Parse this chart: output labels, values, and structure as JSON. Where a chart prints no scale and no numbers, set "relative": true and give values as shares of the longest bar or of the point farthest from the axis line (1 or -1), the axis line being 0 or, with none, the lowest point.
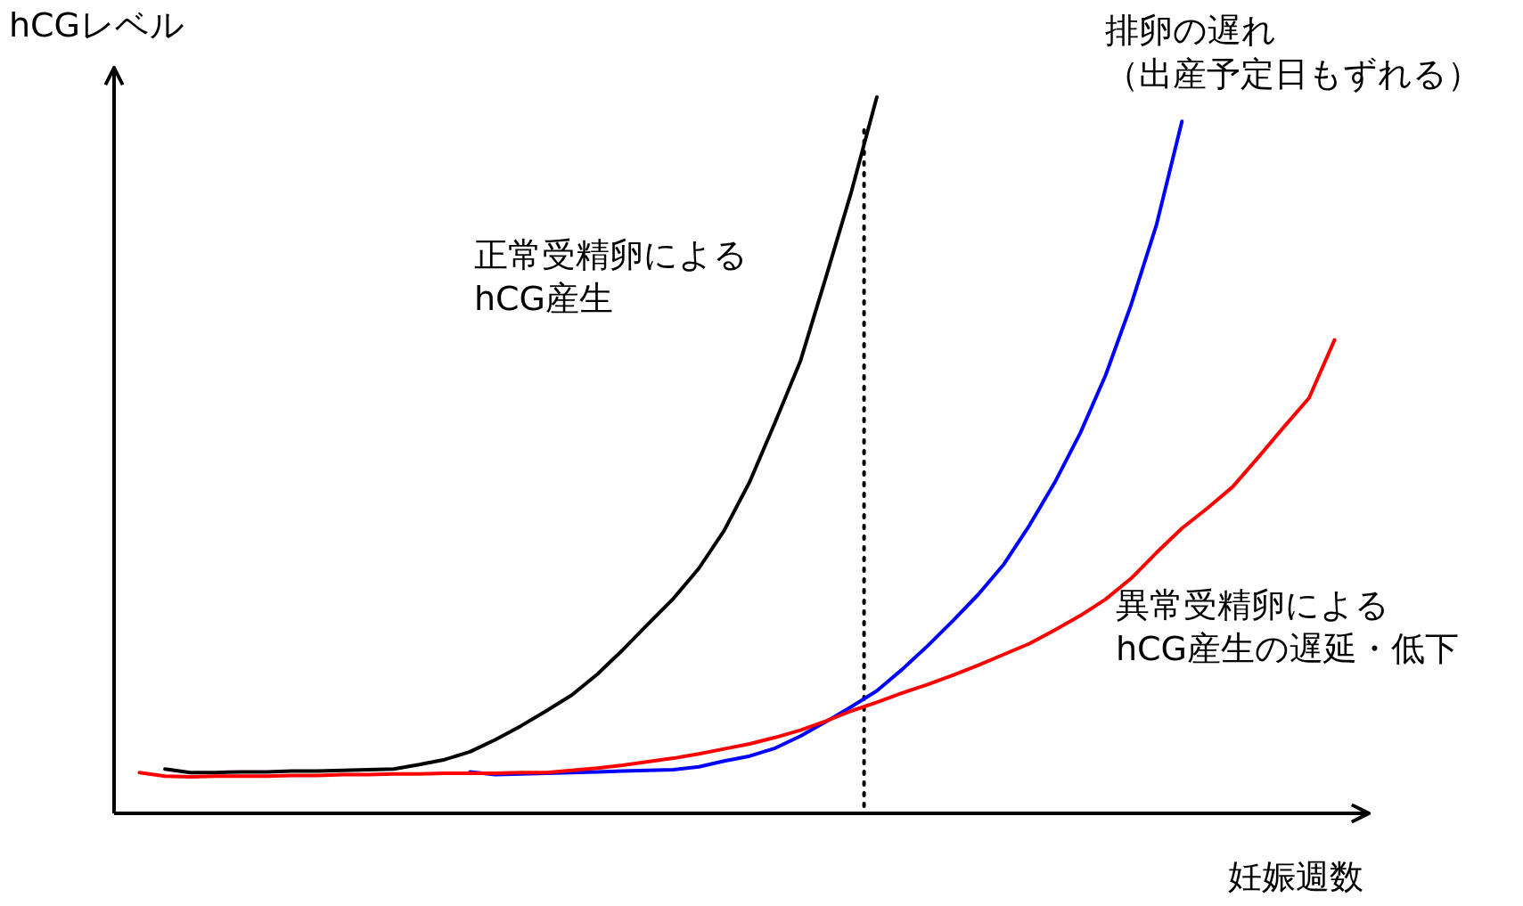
{
  "chart_data": {
    "type": "line",
    "relative": true,
    "xlabel": "妊娠週数",
    "ylabel": "hCGレベル",
    "line_style": "solid",
    "categories": [
      null,
      null,
      null,
      null,
      null,
      null,
      null,
      null,
      null,
      null,
      null,
      null,
      null,
      null,
      null,
      null,
      null,
      null,
      null,
      null,
      null,
      null,
      null,
      null,
      null,
      null,
      null,
      null,
      null,
      null,
      null,
      null,
      null,
      null,
      null,
      null,
      null,
      null,
      null,
      null,
      null,
      null,
      null,
      null,
      null,
      null,
      null,
      null,
      null,
      null
    ],
    "series": [
      {
        "name": "正常受精卵による hCG産生",
        "color": "#000000",
        "values": [
          null,
          null,
          0.062,
          0.057,
          0.057,
          0.058,
          0.058,
          0.059,
          0.059,
          0.06,
          0.061,
          0.062,
          0.068,
          0.075,
          0.086,
          0.103,
          0.122,
          0.143,
          0.165,
          0.194,
          0.228,
          0.264,
          0.3,
          0.342,
          0.395,
          0.463,
          0.546,
          0.632,
          0.749,
          0.868,
          1,
          null,
          null,
          null,
          null,
          null,
          null,
          null,
          null,
          null,
          null,
          null,
          null,
          null,
          null,
          null,
          null,
          null,
          null,
          null
        ]
      },
      {
        "name": "排卵の遅れ（出産予定日もずれる）",
        "color": "#0000ff",
        "values": [
          null,
          null,
          null,
          null,
          null,
          null,
          null,
          null,
          null,
          null,
          null,
          null,
          null,
          null,
          0.058,
          0.054,
          0.055,
          0.056,
          0.057,
          0.058,
          0.059,
          0.06,
          0.061,
          0.065,
          0.073,
          0.08,
          0.091,
          0.108,
          0.128,
          0.149,
          0.171,
          0.201,
          0.234,
          0.269,
          0.306,
          0.348,
          0.402,
          0.462,
          0.531,
          0.612,
          0.71,
          0.822,
          0.966,
          null,
          null,
          null,
          null,
          null,
          null,
          null
        ]
      },
      {
        "name": "異常受精卵による hCG産生の遅延・低下",
        "color": "#ff0000",
        "values": [
          null,
          0.057,
          0.052,
          0.051,
          0.052,
          0.052,
          0.052,
          0.053,
          0.053,
          0.054,
          0.054,
          0.055,
          0.055,
          0.056,
          0.056,
          0.056,
          0.057,
          0.057,
          0.06,
          0.063,
          0.067,
          0.072,
          0.077,
          0.083,
          0.09,
          0.097,
          0.106,
          0.116,
          0.129,
          0.143,
          0.155,
          0.168,
          0.18,
          0.193,
          0.207,
          0.222,
          0.237,
          0.256,
          0.276,
          0.299,
          0.328,
          0.364,
          0.398,
          0.426,
          0.456,
          0.497,
          0.539,
          0.58,
          0.661,
          null
        ]
      }
    ]
  }
}
